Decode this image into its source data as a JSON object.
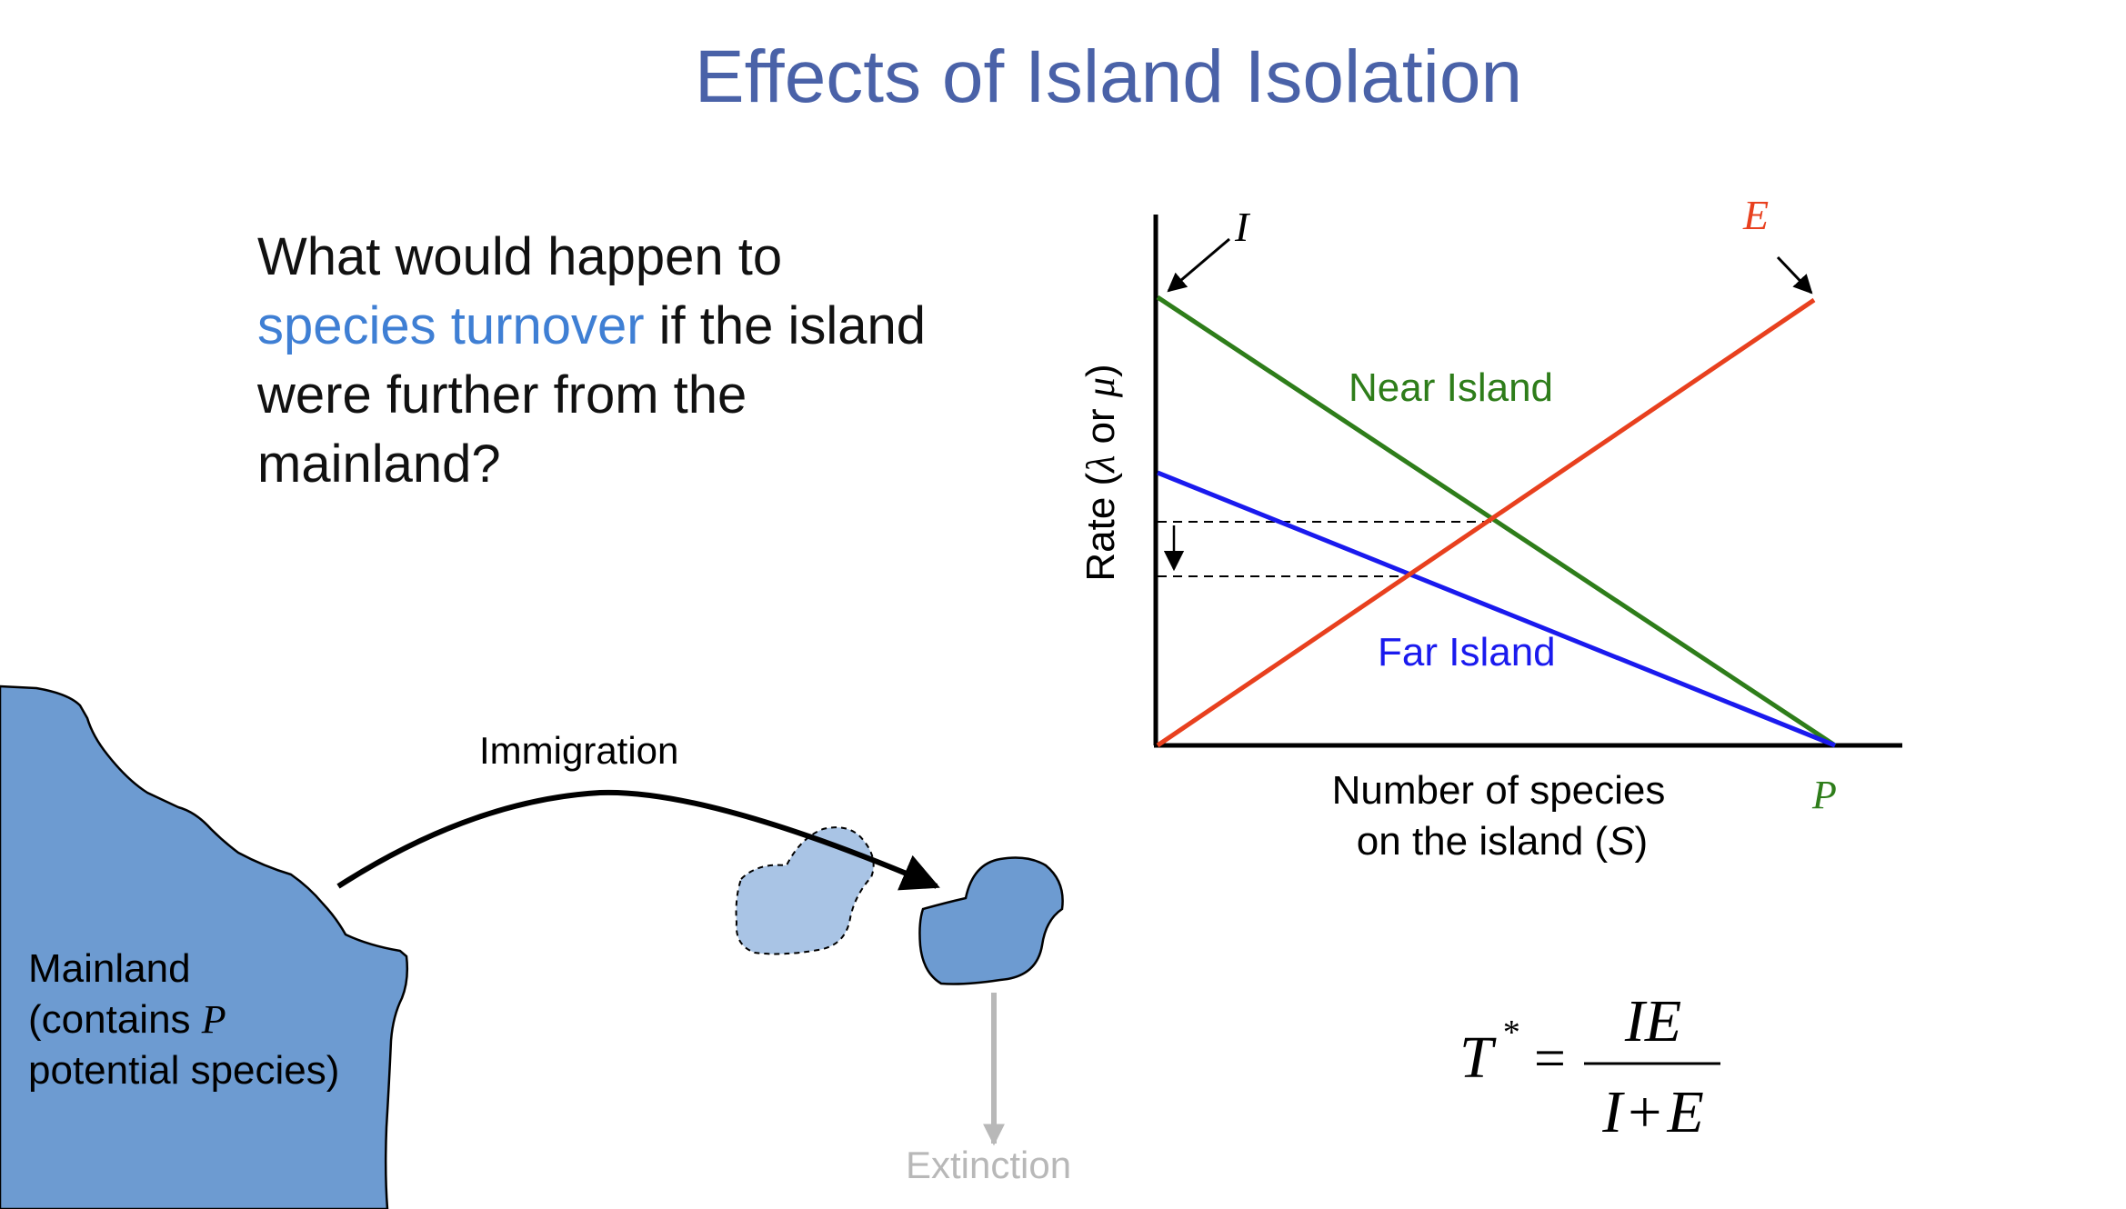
{
  "slide": {
    "title": "Effects of Island Isolation",
    "question_part1": "What would happen to",
    "question_highlight": "species turnover",
    "question_part2": " if the island",
    "question_line3": "were further from the",
    "question_line4": "mainland?"
  },
  "graph": {
    "ylabel_prefix": "Rate (",
    "ylabel_lambda": "λ",
    "ylabel_or": " or ",
    "ylabel_mu": "μ",
    "ylabel_suffix": ")",
    "xlabel_line1": "Number of species",
    "xlabel_line2_prefix": "on the island (",
    "xlabel_line2_var": "S",
    "xlabel_line2_suffix": ")",
    "immigration_marker": "I",
    "extinction_marker": "E",
    "pool_marker": "P",
    "near_label": "Near Island",
    "far_label": "Far Island",
    "colors": {
      "near": "#2e7d1a",
      "far": "#1a1aee",
      "extinction": "#e8401e",
      "pool": "#2e7d1a"
    }
  },
  "diagram": {
    "immigration_label": "Immigration",
    "extinction_label": "Extinction",
    "mainland_line1": "Mainland",
    "mainland_line2_prefix": "(contains ",
    "mainland_line2_var": "P",
    "mainland_line3": "potential species)",
    "colors": {
      "mainland": "#6d9bd1",
      "island": "#6d9bd1",
      "old_island": "#a9c4e5",
      "extinction_arrow": "#b8b8b8"
    }
  },
  "formula": {
    "lhs": "T",
    "lhs_sup": "*",
    "equals": "=",
    "numerator": "IE",
    "denominator_a": "I",
    "denominator_op": "+",
    "denominator_b": "E"
  }
}
